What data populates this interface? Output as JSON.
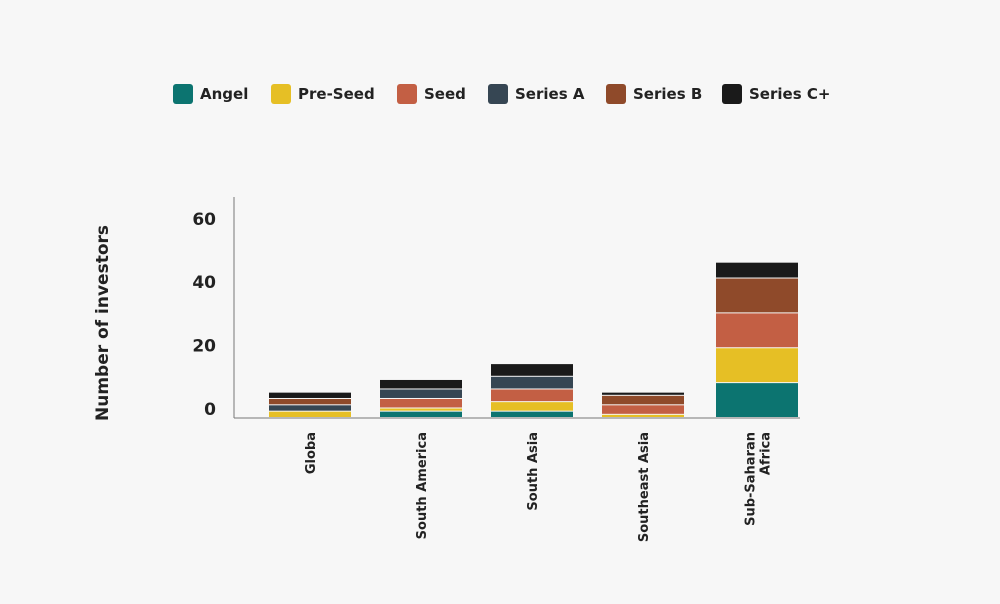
{
  "chart_data": {
    "type": "bar",
    "stacked": true,
    "title": "",
    "xlabel": "",
    "ylabel": "Number of investors",
    "ylim": [
      0,
      70
    ],
    "yticks": [
      0,
      20,
      40,
      60
    ],
    "legend_position": "top",
    "grid": false,
    "categories": [
      "Globa",
      "South America",
      "South Asia",
      "Southeast Asia",
      "Sub-Saharan Africa"
    ],
    "series": [
      {
        "name": "Angel",
        "color": "#0c7470",
        "values": [
          0,
          2,
          2,
          0,
          11
        ]
      },
      {
        "name": "Pre-Seed",
        "color": "#e6bf25",
        "values": [
          2,
          1,
          3,
          1,
          11
        ]
      },
      {
        "name": "Seed",
        "color": "#c35f44",
        "values": [
          0,
          3,
          4,
          3,
          11
        ]
      },
      {
        "name": "Series A",
        "color": "#364653",
        "values": [
          2,
          3,
          4,
          0,
          0
        ]
      },
      {
        "name": "Series B",
        "color": "#8f4a2a",
        "values": [
          2,
          0,
          0,
          3,
          11
        ]
      },
      {
        "name": "Series C+",
        "color": "#1a1a1a",
        "values": [
          2,
          3,
          4,
          1,
          5
        ]
      }
    ]
  }
}
